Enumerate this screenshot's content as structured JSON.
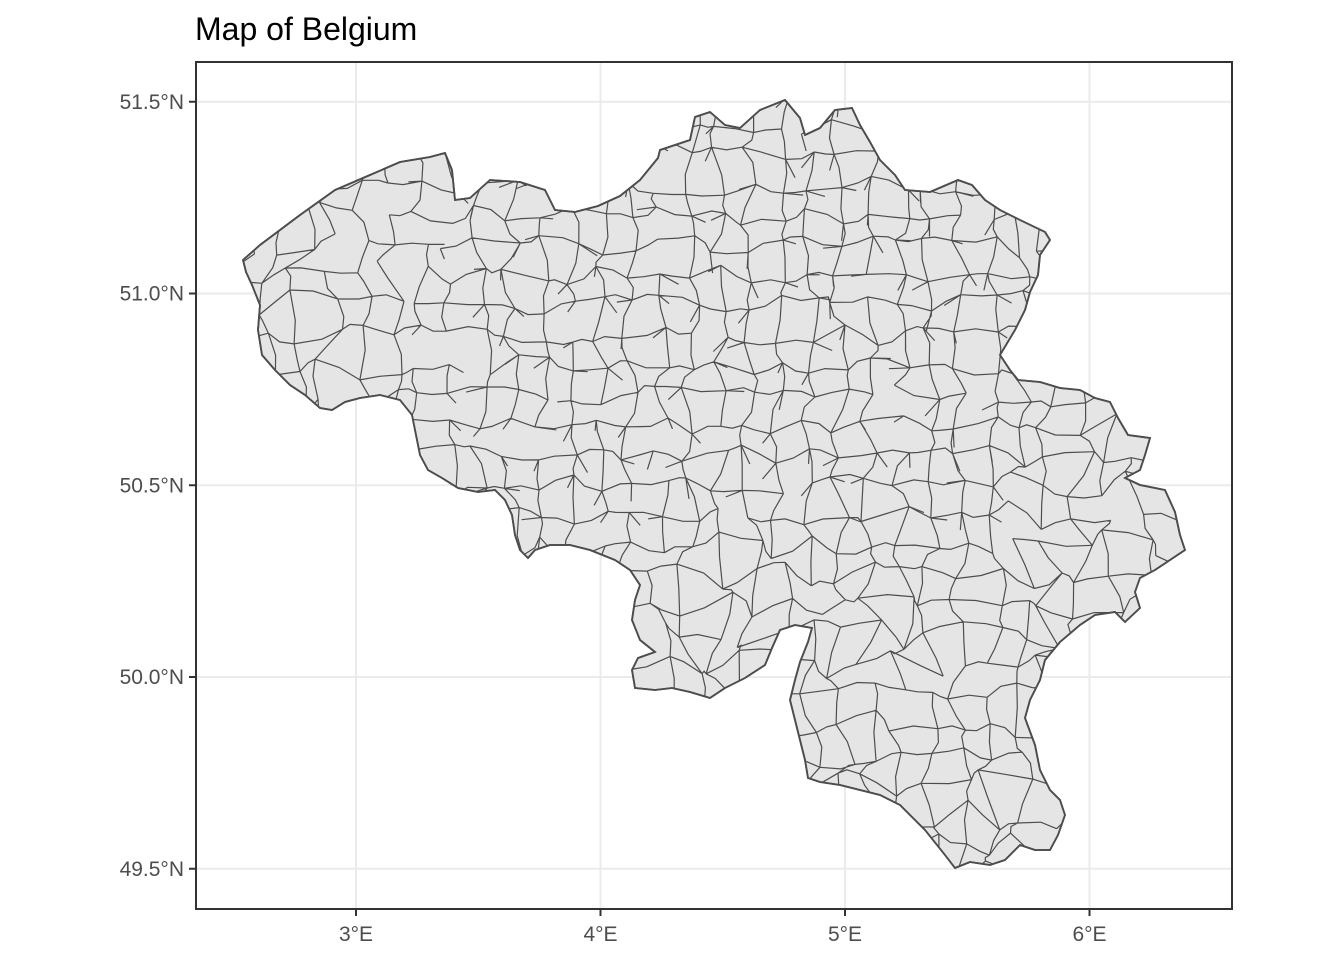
{
  "title": "Map of Belgium",
  "map": {
    "country": "Belgium",
    "subdivisions": "municipalities",
    "fill_color": "#e5e5e5",
    "border_color": "#4d4d4d",
    "grid": true,
    "lon_range": [
      2.35,
      6.6
    ],
    "lat_range": [
      49.42,
      51.61
    ],
    "lon_ticks": [
      3,
      4,
      5,
      6
    ],
    "lat_ticks": [
      49.5,
      50.0,
      50.5,
      51.0,
      51.5
    ]
  },
  "axes": {
    "x_labels": [
      "3°E",
      "4°E",
      "5°E",
      "6°E"
    ],
    "y_labels": [
      "49.5°N",
      "50.0°N",
      "50.5°N",
      "51.0°N",
      "51.5°N"
    ]
  }
}
